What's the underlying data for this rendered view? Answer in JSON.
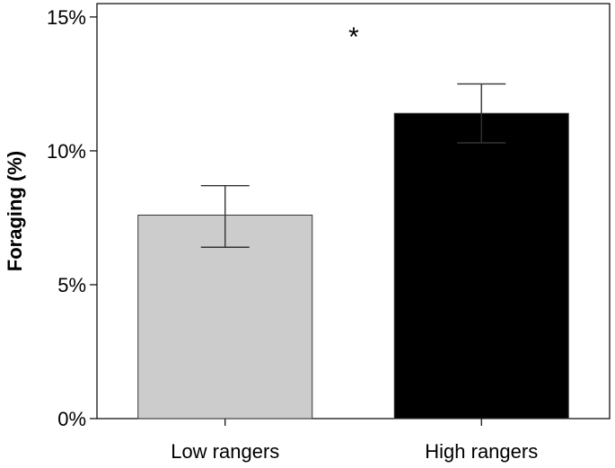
{
  "chart_data": {
    "type": "bar",
    "title": "",
    "xlabel": "",
    "ylabel": "Foraging (%)",
    "ylim": [
      0,
      15.5
    ],
    "yticks": [
      0,
      5,
      10,
      15
    ],
    "ytick_labels": [
      "0%",
      "5%",
      "10%",
      "15%"
    ],
    "categories": [
      "Low rangers",
      "High rangers"
    ],
    "values": [
      7.6,
      11.4
    ],
    "error_low": [
      6.4,
      10.3
    ],
    "error_high": [
      8.7,
      12.5
    ],
    "bar_colors": [
      "#cccccc",
      "#000000"
    ],
    "annotation": "*",
    "grid": false,
    "legend": "none"
  }
}
